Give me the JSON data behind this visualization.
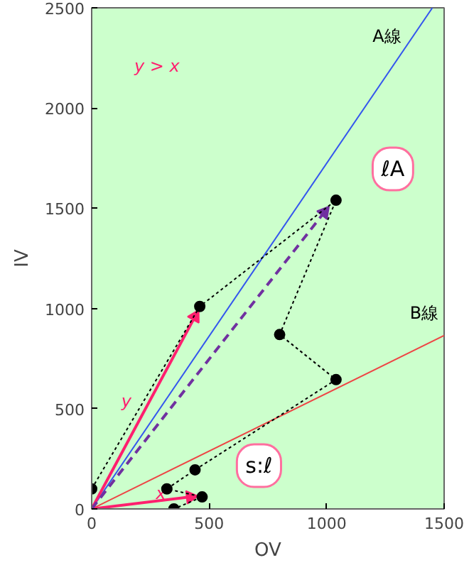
{
  "chart_data": {
    "type": "line",
    "xlabel": "OV",
    "ylabel": "IV",
    "xlim": [
      0,
      1500
    ],
    "ylim": [
      0,
      2500
    ],
    "xticks": [
      0,
      500,
      1000,
      1500
    ],
    "yticks": [
      0,
      500,
      1000,
      1500,
      2000,
      2500
    ],
    "grid": false,
    "series": [
      {
        "name": "A線",
        "color": "#3355ee",
        "x": [
          0,
          1450
        ],
        "values": [
          0,
          2500
        ],
        "marker": "none"
      },
      {
        "name": "B線",
        "color": "#ee4444",
        "x": [
          0,
          1500
        ],
        "values": [
          0,
          865
        ],
        "marker": "none"
      },
      {
        "name": "y",
        "color": "#ff1f6e",
        "x": [
          0,
          440
        ],
        "values": [
          0,
          960
        ],
        "marker": "triangle"
      },
      {
        "name": "x",
        "color": "#ff1f6e",
        "x": [
          0,
          420
        ],
        "values": [
          0,
          60
        ],
        "marker": "triangle"
      },
      {
        "color": "#7030a0",
        "x": [
          0,
          990
        ],
        "values": [
          0,
          1480
        ],
        "marker": "triangle",
        "line_style": "dashed"
      },
      {
        "color": "#000000",
        "x": [
          0,
          460,
          1040,
          800,
          1040,
          440,
          320,
          470,
          350
        ],
        "values": [
          100,
          1010,
          1540,
          870,
          645,
          195,
          100,
          60,
          0
        ],
        "marker": "circle",
        "line_style": "dotted"
      }
    ],
    "annotations": [
      "y > x",
      {
        "text": "ℓA",
        "x": 1040,
        "y": 1540
      },
      {
        "text": "s:ℓ",
        "x": 470,
        "y": 60
      }
    ]
  }
}
